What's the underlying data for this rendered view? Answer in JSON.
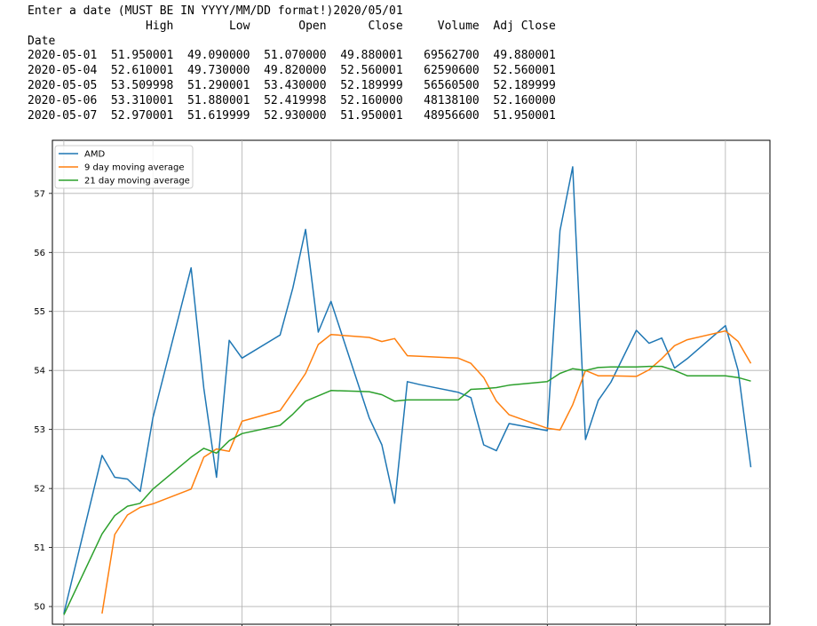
{
  "console": {
    "prompt": "Enter a date (MUST BE IN YYYY/MM/DD format!)",
    "input_value": "2020/05/01",
    "columns": [
      "High",
      "Low",
      "Open",
      "Close",
      "Volume",
      "Adj Close"
    ],
    "index_name": "Date",
    "rows": [
      {
        "date": "2020-05-01",
        "cells": [
          "51.950001",
          "49.090000",
          "51.070000",
          "49.880001",
          "69562700",
          "49.880001"
        ]
      },
      {
        "date": "2020-05-04",
        "cells": [
          "52.610001",
          "49.730000",
          "49.820000",
          "52.560001",
          "62590600",
          "52.560001"
        ]
      },
      {
        "date": "2020-05-05",
        "cells": [
          "53.509998",
          "51.290001",
          "53.430000",
          "52.189999",
          "56560500",
          "52.189999"
        ]
      },
      {
        "date": "2020-05-06",
        "cells": [
          "53.310001",
          "51.880001",
          "52.419998",
          "52.160000",
          "48138100",
          "52.160000"
        ]
      },
      {
        "date": "2020-05-07",
        "cells": [
          "52.970001",
          "51.619999",
          "52.930000",
          "51.950001",
          "48956600",
          "51.950001"
        ]
      }
    ]
  },
  "chart_data": {
    "type": "line",
    "title": "",
    "xlabel": "",
    "ylabel": "",
    "ylim": [
      49.7,
      57.9
    ],
    "yticks": [
      50,
      51,
      52,
      53,
      54,
      55,
      56,
      57
    ],
    "xlim": [
      -0.9,
      55.5
    ],
    "xtick_positions": [
      0,
      7,
      14,
      21,
      31,
      38,
      45,
      52
    ],
    "grid": true,
    "legend_position": "upper-left",
    "series": [
      {
        "name": "AMD",
        "color": "#1f77b4",
        "x": [
          0,
          3,
          4,
          5,
          6,
          7,
          10,
          11,
          12,
          13,
          14,
          17,
          18,
          19,
          20,
          21,
          24,
          25,
          26,
          27,
          28,
          31,
          32,
          33,
          34,
          35,
          38,
          39,
          40,
          41,
          42,
          43,
          45,
          46,
          47,
          48,
          49,
          52,
          53,
          54
        ],
        "y": [
          49.88,
          52.56,
          52.19,
          52.16,
          51.95,
          53.2,
          55.74,
          53.7,
          52.19,
          54.51,
          54.21,
          54.6,
          55.4,
          56.39,
          54.65,
          55.17,
          53.2,
          52.74,
          51.75,
          53.81,
          53.76,
          53.63,
          53.54,
          52.74,
          52.64,
          53.1,
          52.98,
          56.37,
          57.45,
          52.83,
          53.49,
          53.8,
          54.68,
          54.46,
          54.55,
          54.04,
          54.2,
          54.76,
          54.0,
          52.36
        ]
      },
      {
        "name": "9 day moving average",
        "color": "#ff7f0e",
        "x": [
          3,
          4,
          5,
          6,
          7,
          10,
          11,
          12,
          13,
          14,
          17,
          18,
          19,
          20,
          21,
          24,
          25,
          26,
          27,
          28,
          31,
          32,
          33,
          34,
          35,
          38,
          39,
          40,
          41,
          42,
          43,
          45,
          46,
          47,
          48,
          49,
          52,
          53,
          54
        ],
        "y": [
          49.88,
          51.22,
          51.55,
          51.68,
          51.74,
          51.99,
          52.53,
          52.67,
          52.63,
          53.14,
          53.32,
          53.63,
          53.95,
          54.44,
          54.61,
          54.56,
          54.49,
          54.54,
          54.25,
          54.24,
          54.21,
          54.12,
          53.88,
          53.48,
          53.25,
          53.02,
          52.99,
          53.42,
          54.0,
          53.91,
          53.91,
          53.9,
          54.01,
          54.2,
          54.42,
          54.52,
          54.67,
          54.49,
          54.12
        ]
      },
      {
        "name": "21 day moving average",
        "color": "#2ca02c",
        "x": [
          0,
          3,
          4,
          5,
          6,
          7,
          10,
          11,
          12,
          13,
          14,
          17,
          18,
          19,
          20,
          21,
          24,
          25,
          26,
          27,
          28,
          31,
          32,
          33,
          34,
          35,
          38,
          39,
          40,
          41,
          42,
          43,
          45,
          46,
          47,
          48,
          49,
          52,
          53,
          54
        ],
        "y": [
          49.86,
          51.23,
          51.54,
          51.7,
          51.75,
          51.99,
          52.53,
          52.68,
          52.6,
          52.81,
          52.93,
          53.07,
          53.26,
          53.48,
          53.57,
          53.66,
          53.64,
          53.59,
          53.48,
          53.5,
          53.5,
          53.5,
          53.68,
          53.69,
          53.71,
          53.75,
          53.81,
          53.95,
          54.03,
          54.0,
          54.05,
          54.06,
          54.06,
          54.07,
          54.07,
          54.0,
          53.91,
          53.91,
          53.88,
          53.82
        ]
      }
    ]
  }
}
